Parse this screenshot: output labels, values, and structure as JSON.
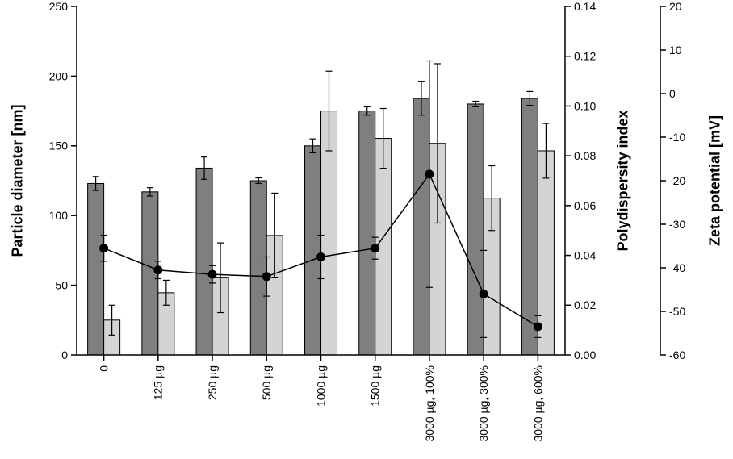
{
  "chart_data": {
    "type": "bar",
    "title": "",
    "categories": [
      "0",
      "125 µg",
      "250 µg",
      "500 µg",
      "1000 µg",
      "1500 µg",
      "3000 µg, 100%",
      "3000 µg, 300%",
      "3000 µg, 600%"
    ],
    "series": [
      {
        "name": "Particle diameter",
        "type": "bar",
        "axis": "left",
        "color": "#7f7f7f",
        "values": [
          123,
          117,
          134,
          125,
          150,
          175,
          184,
          180,
          184
        ],
        "errors": [
          5,
          3,
          8,
          2,
          5,
          3,
          12,
          2,
          5
        ]
      },
      {
        "name": "Polydispersity index",
        "type": "bar",
        "axis": "right1",
        "color": "#d4d4d4",
        "values": [
          0.014,
          0.025,
          0.031,
          0.048,
          0.098,
          0.087,
          0.085,
          0.063,
          0.082
        ],
        "errors": [
          0.006,
          0.005,
          0.014,
          0.017,
          0.016,
          0.012,
          0.032,
          0.013,
          0.011
        ]
      },
      {
        "name": "Zeta potential",
        "type": "line",
        "axis": "right2",
        "color": "#000000",
        "values": [
          -35.5,
          -40.5,
          -41.5,
          -42,
          -37.5,
          -35.5,
          -18.5,
          -46,
          -53.5
        ],
        "errors": [
          3,
          2,
          2,
          4.5,
          5,
          2.5,
          26,
          10,
          2.5
        ]
      }
    ],
    "axes": {
      "left": {
        "label": "Particle diameter [nm]",
        "min": 0,
        "max": 250,
        "ticks": [
          0,
          50,
          100,
          150,
          200,
          250
        ]
      },
      "right1": {
        "label": "Polydispersity index",
        "min": 0,
        "max": 0.14,
        "ticks": [
          0.0,
          0.02,
          0.04,
          0.06,
          0.08,
          0.1,
          0.12,
          0.14
        ],
        "tick_labels": [
          "0.00",
          "0.02",
          "0.04",
          "0.06",
          "0.08",
          "0.10",
          "0.12",
          "0.14"
        ]
      },
      "right2": {
        "label": "Zeta potential [mV]",
        "min": -60,
        "max": 20,
        "ticks": [
          20,
          10,
          0,
          -10,
          -20,
          -30,
          -40,
          -50,
          -60
        ]
      }
    },
    "legend": "none",
    "grid": false
  }
}
